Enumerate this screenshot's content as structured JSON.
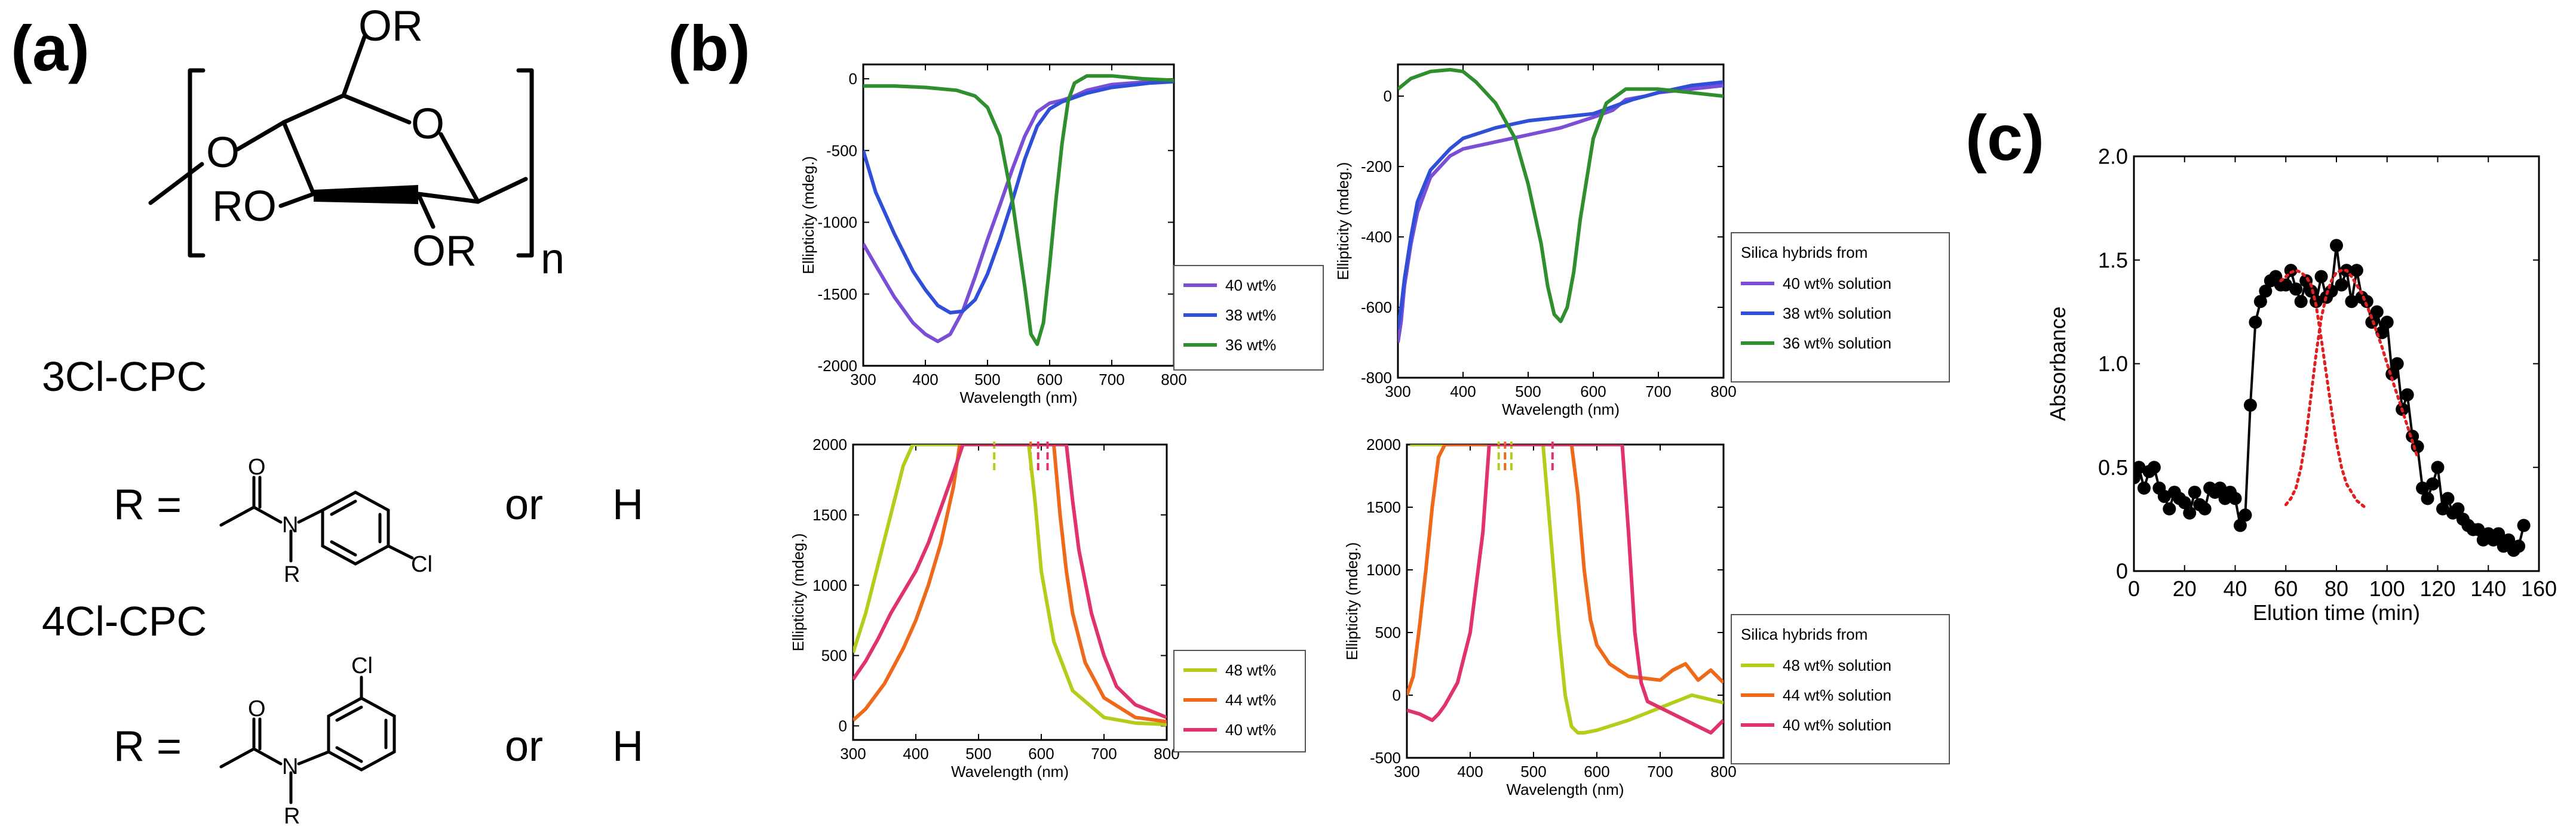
{
  "figure": {
    "panel_a_label": "(a)",
    "panel_b_label": "(b)",
    "panel_c_label": "(c)"
  },
  "structure": {
    "substituent_OR_top": "OR",
    "substituent_O_left": "O",
    "substituent_RO": "RO",
    "substituent_OR_bottom": "OR",
    "ring_oxygen": "O",
    "repeat_subscript": "n",
    "compound1_name": "3Cl-CPC",
    "compound2_name": "4Cl-CPC",
    "r_equals": "R =",
    "or_text": "or",
    "h_text": "H",
    "atom_O": "O",
    "atom_N": "N",
    "atom_R": "R",
    "atom_Cl": "Cl"
  },
  "chart_data": [
    {
      "id": "b1",
      "type": "line",
      "xlabel": "Wavelength (nm)",
      "ylabel": "Ellipticity (mdeg.)",
      "xlim": [
        300,
        800
      ],
      "ylim": [
        -2000,
        100
      ],
      "xticks": [
        300,
        400,
        500,
        600,
        700,
        800
      ],
      "yticks": [
        0,
        -500,
        -1000,
        -1500,
        -2000
      ],
      "legend_title": "",
      "series": [
        {
          "name": "40 wt%",
          "color": "#7a4fd6",
          "x": [
            300,
            320,
            350,
            380,
            400,
            420,
            440,
            460,
            480,
            500,
            520,
            540,
            560,
            580,
            600,
            620,
            640,
            660,
            700,
            760,
            800
          ],
          "y": [
            -1150,
            -1300,
            -1520,
            -1700,
            -1780,
            -1830,
            -1780,
            -1620,
            -1380,
            -1120,
            -880,
            -630,
            -400,
            -230,
            -170,
            -150,
            -120,
            -80,
            -40,
            -20,
            -10
          ]
        },
        {
          "name": "38 wt%",
          "color": "#2f4fd8",
          "x": [
            300,
            320,
            350,
            380,
            400,
            420,
            440,
            460,
            480,
            500,
            520,
            540,
            560,
            580,
            600,
            620,
            640,
            660,
            700,
            760,
            800
          ],
          "y": [
            -500,
            -790,
            -1080,
            -1340,
            -1470,
            -1580,
            -1630,
            -1620,
            -1540,
            -1360,
            -1120,
            -850,
            -560,
            -330,
            -210,
            -160,
            -130,
            -100,
            -60,
            -30,
            -20
          ]
        },
        {
          "name": "36 wt%",
          "color": "#2f8f2f",
          "x": [
            300,
            350,
            400,
            450,
            480,
            500,
            520,
            540,
            560,
            570,
            580,
            590,
            600,
            610,
            620,
            630,
            640,
            660,
            700,
            750,
            800
          ],
          "y": [
            -50,
            -50,
            -60,
            -80,
            -120,
            -200,
            -400,
            -850,
            -1450,
            -1780,
            -1850,
            -1700,
            -1300,
            -850,
            -450,
            -150,
            -30,
            20,
            20,
            0,
            -10
          ]
        }
      ]
    },
    {
      "id": "b2",
      "type": "line",
      "xlabel": "Wavelength (nm)",
      "ylabel": "Ellipticity (mdeg.)",
      "xlim": [
        300,
        800
      ],
      "ylim": [
        -800,
        90
      ],
      "xticks": [
        300,
        400,
        500,
        600,
        700,
        800
      ],
      "yticks": [
        0,
        -200,
        -400,
        -600,
        -800
      ],
      "legend_title": "Silica hybrids from",
      "series": [
        {
          "name": "40 wt% solution",
          "color": "#7a4fd6",
          "x": [
            300,
            305,
            310,
            320,
            330,
            350,
            380,
            400,
            450,
            500,
            550,
            600,
            630,
            650,
            680,
            700,
            750,
            800
          ],
          "y": [
            -700,
            -640,
            -540,
            -420,
            -330,
            -230,
            -170,
            -150,
            -130,
            -110,
            -90,
            -60,
            -40,
            -10,
            0,
            10,
            20,
            30
          ]
        },
        {
          "name": "38 wt% solution",
          "color": "#2f4fd8",
          "x": [
            300,
            305,
            310,
            320,
            330,
            350,
            380,
            400,
            450,
            500,
            550,
            600,
            630,
            660,
            700,
            750,
            800
          ],
          "y": [
            -660,
            -600,
            -520,
            -400,
            -300,
            -210,
            -150,
            -120,
            -90,
            -70,
            -60,
            -50,
            -30,
            -10,
            10,
            30,
            40
          ]
        },
        {
          "name": "36 wt% solution",
          "color": "#2f8f2f",
          "x": [
            300,
            320,
            350,
            380,
            400,
            420,
            450,
            480,
            500,
            520,
            530,
            540,
            550,
            560,
            570,
            580,
            600,
            620,
            650,
            700,
            750,
            800
          ],
          "y": [
            20,
            50,
            70,
            75,
            70,
            40,
            -20,
            -120,
            -250,
            -420,
            -540,
            -620,
            -640,
            -600,
            -500,
            -350,
            -120,
            -20,
            20,
            20,
            10,
            0
          ]
        }
      ]
    },
    {
      "id": "b3",
      "type": "line",
      "xlabel": "Wavelength (nm)",
      "ylabel": "Ellipticity (mdeg.)",
      "xlim": [
        300,
        800
      ],
      "ylim": [
        -100,
        2000
      ],
      "xticks": [
        300,
        400,
        500,
        600,
        700,
        800
      ],
      "yticks": [
        0,
        500,
        1000,
        1500,
        2000
      ],
      "legend_title": "",
      "marker_x": [
        {
          "x": 525,
          "color": "#b5cc1a"
        },
        {
          "x": 583,
          "color": "#ee6a1a"
        },
        {
          "x": 595,
          "color": "#e0336a"
        },
        {
          "x": 610,
          "color": "#e0336a"
        }
      ],
      "series": [
        {
          "name": "48 wt%",
          "color": "#b5cc1a",
          "x": [
            300,
            320,
            340,
            360,
            380,
            395,
            580,
            590,
            600,
            620,
            650,
            700,
            750,
            800
          ],
          "y": [
            520,
            800,
            1150,
            1500,
            1850,
            2000,
            2000,
            1600,
            1100,
            600,
            250,
            60,
            20,
            10
          ]
        },
        {
          "name": "44 wt%",
          "color": "#ee6a1a",
          "x": [
            300,
            320,
            350,
            380,
            400,
            420,
            440,
            460,
            470,
            620,
            630,
            640,
            650,
            670,
            700,
            750,
            800
          ],
          "y": [
            40,
            120,
            300,
            550,
            750,
            1000,
            1300,
            1700,
            2000,
            2000,
            1500,
            1100,
            800,
            450,
            200,
            60,
            30
          ]
        },
        {
          "name": "40 wt%",
          "color": "#e0336a",
          "x": [
            300,
            320,
            340,
            360,
            380,
            400,
            420,
            440,
            460,
            475,
            640,
            650,
            660,
            680,
            700,
            720,
            750,
            800
          ],
          "y": [
            330,
            460,
            620,
            800,
            950,
            1100,
            1300,
            1550,
            1800,
            2000,
            2000,
            1600,
            1250,
            800,
            500,
            280,
            150,
            60
          ]
        }
      ]
    },
    {
      "id": "b4",
      "type": "line",
      "xlabel": "Wavelength (nm)",
      "ylabel": "Ellipticity (mdeg.)",
      "xlim": [
        300,
        800
      ],
      "ylim": [
        -500,
        2000
      ],
      "xticks": [
        300,
        400,
        500,
        600,
        700,
        800
      ],
      "yticks": [
        -500,
        0,
        500,
        1000,
        1500,
        2000
      ],
      "legend_title": "Silica hybrids from",
      "marker_x": [
        {
          "x": 445,
          "color": "#b5cc1a"
        },
        {
          "x": 455,
          "color": "#ee6a1a"
        },
        {
          "x": 465,
          "color": "#b5cc1a"
        },
        {
          "x": 530,
          "color": "#e0336a"
        }
      ],
      "series": [
        {
          "name": "48 wt% solution",
          "color": "#b5cc1a",
          "x": [
            305,
            310,
            515,
            520,
            530,
            540,
            550,
            560,
            570,
            580,
            600,
            650,
            700,
            750,
            800
          ],
          "y": [
            2000,
            2000,
            2000,
            1700,
            1100,
            500,
            0,
            -250,
            -300,
            -300,
            -280,
            -200,
            -100,
            0,
            -60
          ]
        },
        {
          "name": "44 wt% solution",
          "color": "#ee6a1a",
          "x": [
            300,
            310,
            320,
            330,
            340,
            350,
            360,
            370,
            380,
            560,
            570,
            580,
            590,
            600,
            620,
            650,
            700,
            720,
            740,
            760,
            780,
            800
          ],
          "y": [
            0,
            150,
            550,
            1000,
            1500,
            1900,
            2000,
            2000,
            2000,
            2000,
            1600,
            1000,
            600,
            400,
            250,
            150,
            120,
            200,
            250,
            120,
            200,
            100
          ]
        },
        {
          "name": "40 wt% solution",
          "color": "#e0336a",
          "x": [
            300,
            320,
            340,
            350,
            360,
            380,
            400,
            420,
            430,
            640,
            650,
            660,
            670,
            680,
            700,
            720,
            740,
            760,
            780,
            800
          ],
          "y": [
            -120,
            -150,
            -200,
            -150,
            -80,
            100,
            500,
            1300,
            2000,
            2000,
            1300,
            500,
            100,
            -50,
            -100,
            -150,
            -200,
            -250,
            -300,
            -200
          ]
        }
      ]
    },
    {
      "id": "c",
      "type": "scatter",
      "xlabel": "Elution time (min)",
      "ylabel": "Absorbance",
      "xlim": [
        0,
        160
      ],
      "ylim": [
        0,
        2.0
      ],
      "xticks": [
        0,
        20,
        40,
        60,
        80,
        100,
        120,
        140,
        160
      ],
      "yticks": [
        0,
        0.5,
        1.0,
        1.5,
        2.0
      ],
      "ytick_labels": [
        "0",
        "0.5",
        "1.0",
        "1.5",
        "2.0"
      ],
      "series": [
        {
          "name": "Absorbance",
          "color": "#000000",
          "style": "line+marker",
          "x": [
            0,
            2,
            4,
            6,
            8,
            10,
            12,
            14,
            16,
            18,
            20,
            22,
            24,
            26,
            28,
            30,
            32,
            34,
            36,
            38,
            40,
            42,
            44,
            46,
            48,
            50,
            52,
            54,
            56,
            58,
            60,
            62,
            64,
            66,
            68,
            70,
            72,
            74,
            76,
            78,
            80,
            82,
            84,
            86,
            88,
            90,
            92,
            94,
            96,
            98,
            100,
            102,
            104,
            106,
            108,
            110,
            112,
            114,
            116,
            118,
            120,
            122,
            124,
            126,
            128,
            130,
            132,
            134,
            136,
            138,
            140,
            142,
            144,
            146,
            148,
            150,
            152,
            154
          ],
          "y": [
            0.45,
            0.5,
            0.4,
            0.48,
            0.5,
            0.4,
            0.36,
            0.3,
            0.38,
            0.35,
            0.33,
            0.28,
            0.38,
            0.32,
            0.3,
            0.4,
            0.38,
            0.4,
            0.35,
            0.38,
            0.35,
            0.22,
            0.27,
            0.8,
            1.2,
            1.3,
            1.35,
            1.4,
            1.42,
            1.38,
            1.38,
            1.45,
            1.36,
            1.3,
            1.4,
            1.35,
            1.3,
            1.42,
            1.32,
            1.35,
            1.57,
            1.38,
            1.45,
            1.3,
            1.45,
            1.32,
            1.3,
            1.2,
            1.25,
            1.15,
            1.2,
            0.95,
            1.0,
            0.78,
            0.85,
            0.65,
            0.6,
            0.4,
            0.35,
            0.42,
            0.5,
            0.3,
            0.35,
            0.28,
            0.3,
            0.25,
            0.22,
            0.2,
            0.2,
            0.15,
            0.18,
            0.15,
            0.18,
            0.12,
            0.15,
            0.1,
            0.12,
            0.22
          ]
        },
        {
          "name": "Fit peak 1",
          "color": "#e02020",
          "style": "dotted",
          "x": [
            58,
            60,
            62,
            64,
            66,
            68,
            70,
            72,
            74,
            76,
            78,
            80,
            82,
            84,
            86,
            88,
            90,
            92
          ],
          "y": [
            1.4,
            1.42,
            1.44,
            1.45,
            1.44,
            1.42,
            1.38,
            1.28,
            1.12,
            0.95,
            0.78,
            0.62,
            0.5,
            0.42,
            0.38,
            0.34,
            0.32,
            0.3
          ]
        },
        {
          "name": "Fit peak 2",
          "color": "#e02020",
          "style": "dotted",
          "x": [
            60,
            62,
            64,
            66,
            68,
            70,
            72,
            74,
            76,
            78,
            80,
            82,
            84,
            86,
            88,
            90,
            92,
            94,
            96,
            98,
            100,
            104,
            108,
            112
          ],
          "y": [
            0.32,
            0.35,
            0.4,
            0.5,
            0.65,
            0.85,
            1.05,
            1.22,
            1.33,
            1.4,
            1.44,
            1.45,
            1.45,
            1.42,
            1.38,
            1.34,
            1.28,
            1.22,
            1.15,
            1.08,
            1.0,
            0.85,
            0.7,
            0.55
          ]
        }
      ]
    }
  ]
}
